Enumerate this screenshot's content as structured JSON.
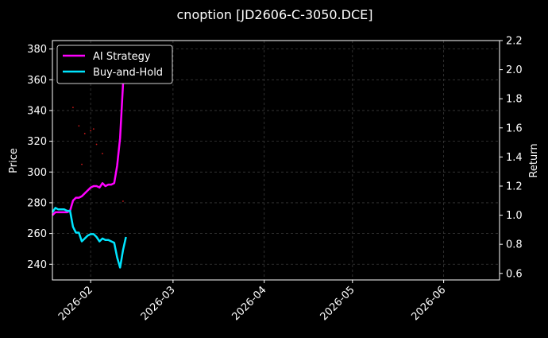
{
  "chart_data": {
    "type": "line",
    "title": "cnoption [JD2606-C-3050.DCE]",
    "xlabel": "",
    "ylabel": "Price",
    "y2label": "Return",
    "x_ticks": [
      "2026-02",
      "2026-03",
      "2026-04",
      "2026-05",
      "2026-06"
    ],
    "y_ticks": [
      240,
      260,
      280,
      300,
      320,
      340,
      360,
      380
    ],
    "y2_ticks": [
      "0.6",
      "0.8",
      "1.0",
      "1.2",
      "1.4",
      "1.6",
      "1.8",
      "2.0",
      "2.2"
    ],
    "xlim": [
      "2026-01-19",
      "2026-06-20"
    ],
    "ylim": [
      229.8,
      385.5
    ],
    "y2lim": [
      0.555,
      2.2
    ],
    "grid": true,
    "legend_position": "top-left",
    "colors": {
      "ai": "#ff00ff",
      "bh": "#00e5ff",
      "price_marks": "#ff2020",
      "grid": "#3a3a3a",
      "axis": "#ffffff"
    },
    "series": [
      {
        "name": "AI Strategy",
        "axis": "return",
        "x": [
          "2026-01-19",
          "2026-01-20",
          "2026-01-21",
          "2026-01-22",
          "2026-01-23",
          "2026-01-24",
          "2026-01-25",
          "2026-01-26",
          "2026-01-27",
          "2026-01-28",
          "2026-01-29",
          "2026-01-30",
          "2026-01-31",
          "2026-02-01",
          "2026-02-02",
          "2026-02-03",
          "2026-02-04",
          "2026-02-05",
          "2026-02-06",
          "2026-02-07",
          "2026-02-08",
          "2026-02-09",
          "2026-02-10",
          "2026-02-11",
          "2026-02-12",
          "2026-02-13"
        ],
        "values": [
          1.0,
          1.02,
          1.02,
          1.02,
          1.02,
          1.02,
          1.03,
          1.1,
          1.12,
          1.12,
          1.13,
          1.15,
          1.17,
          1.19,
          1.2,
          1.2,
          1.19,
          1.22,
          1.2,
          1.21,
          1.21,
          1.22,
          1.34,
          1.53,
          1.9,
          2.04
        ]
      },
      {
        "name": "Buy-and-Hold",
        "axis": "return",
        "x": [
          "2026-01-19",
          "2026-01-20",
          "2026-01-21",
          "2026-01-22",
          "2026-01-23",
          "2026-01-24",
          "2026-01-25",
          "2026-01-26",
          "2026-01-27",
          "2026-01-28",
          "2026-01-29",
          "2026-01-30",
          "2026-01-31",
          "2026-02-01",
          "2026-02-02",
          "2026-02-03",
          "2026-02-04",
          "2026-02-05",
          "2026-02-06",
          "2026-02-07",
          "2026-02-08",
          "2026-02-09",
          "2026-02-10",
          "2026-02-11",
          "2026-02-12",
          "2026-02-13"
        ],
        "values": [
          1.02,
          1.05,
          1.04,
          1.04,
          1.04,
          1.03,
          1.03,
          0.92,
          0.88,
          0.88,
          0.82,
          0.84,
          0.86,
          0.87,
          0.87,
          0.85,
          0.82,
          0.84,
          0.83,
          0.83,
          0.82,
          0.81,
          0.71,
          0.64,
          0.76,
          0.85
        ]
      }
    ],
    "price_marks": {
      "axis": "price",
      "x": [
        "2026-01-26",
        "2026-01-28",
        "2026-01-29",
        "2026-01-30",
        "2026-02-01",
        "2026-02-02",
        "2026-02-03",
        "2026-02-05",
        "2026-02-12"
      ],
      "values": [
        342,
        330,
        305,
        325,
        327,
        328,
        318,
        312,
        281
      ]
    }
  }
}
